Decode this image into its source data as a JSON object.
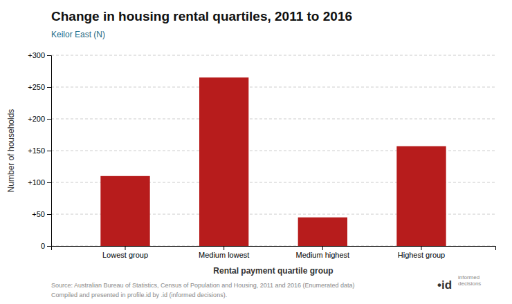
{
  "chart_data": {
    "type": "bar",
    "title": "Change in housing rental quartiles, 2011 to 2016",
    "subtitle": "Keilor East (N)",
    "categories": [
      "Lowest group",
      "Medium lowest",
      "Medium highest",
      "Highest group"
    ],
    "values": [
      110,
      265,
      45,
      157
    ],
    "color": "#b71c1c",
    "xlabel": "Rental payment quartile group",
    "ylabel": "Number of households",
    "ylim": [
      0,
      300
    ],
    "yticks": [
      0,
      {
        "value": 50,
        "label": "+50"
      },
      {
        "value": 100,
        "label": "+100"
      },
      {
        "value": 150,
        "label": "+150"
      },
      {
        "value": 200,
        "label": "+200"
      },
      {
        "value": 250,
        "label": "+250"
      },
      {
        "value": 300,
        "label": "+300"
      }
    ],
    "grid": true,
    "annotations": [
      "Source: Australian Bureau of Statistics, Census of Population and Housing, 2011 and 2016 (Enumerated data)",
      "Compiled and presented in profile.id by .id (informed decisions).",
      "•id",
      "informed",
      "decisions"
    ]
  }
}
